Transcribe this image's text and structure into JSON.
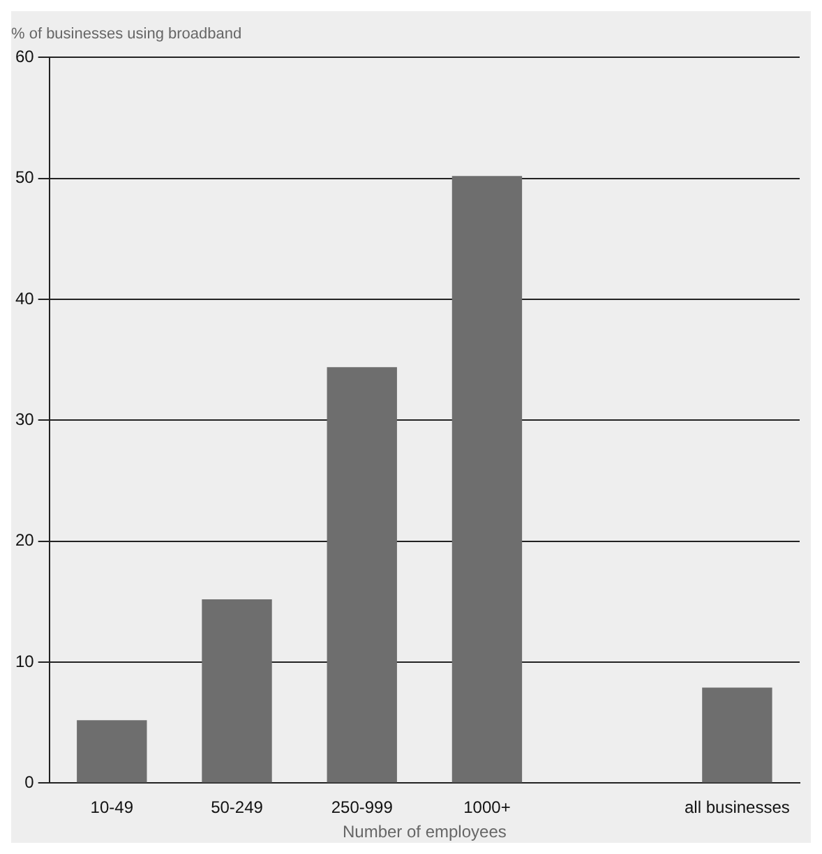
{
  "chart_data": {
    "type": "bar",
    "title": "% of businesses using broadband",
    "xlabel": "Number of employees",
    "categories": [
      "10-49",
      "50-249",
      "250-999",
      "1000+",
      null,
      "all businesses"
    ],
    "values": [
      5.2,
      15.2,
      34.4,
      50.2,
      null,
      7.9
    ],
    "color": "#6e6e6e",
    "ylim": [
      0,
      60
    ],
    "yticks": [
      0,
      10,
      20,
      30,
      40,
      50,
      60
    ],
    "grid": "y",
    "legend": false
  }
}
